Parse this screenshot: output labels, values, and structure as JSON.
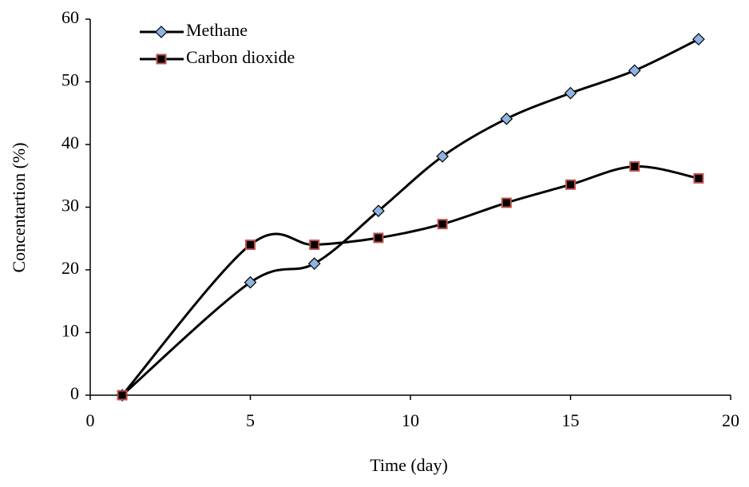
{
  "chart_data": {
    "type": "line",
    "xlabel": "Time (day)",
    "ylabel": "Concentartion (%)",
    "x": [
      1,
      5,
      7,
      9,
      11,
      13,
      15,
      17,
      19
    ],
    "series": [
      {
        "name": "Methane",
        "color": "#000000",
        "marker": "diamond",
        "marker_color": "#8db4e2",
        "values": [
          0,
          18,
          21,
          29.4,
          38.1,
          44.1,
          48.2,
          51.8,
          56.8
        ]
      },
      {
        "name": "Carbon dioxide",
        "color": "#000000",
        "marker": "square",
        "marker_color": "#c0504d",
        "values": [
          0,
          24,
          24,
          25.1,
          27.3,
          30.7,
          33.6,
          36.5,
          34.6
        ]
      }
    ],
    "xlim": [
      0,
      20
    ],
    "xticks": [
      0,
      5,
      10,
      15,
      20
    ],
    "ylim": [
      0,
      60
    ],
    "yticks": [
      0,
      10,
      20,
      30,
      40,
      50,
      60
    ],
    "grid": false,
    "smooth": true,
    "legend": "upper left"
  }
}
